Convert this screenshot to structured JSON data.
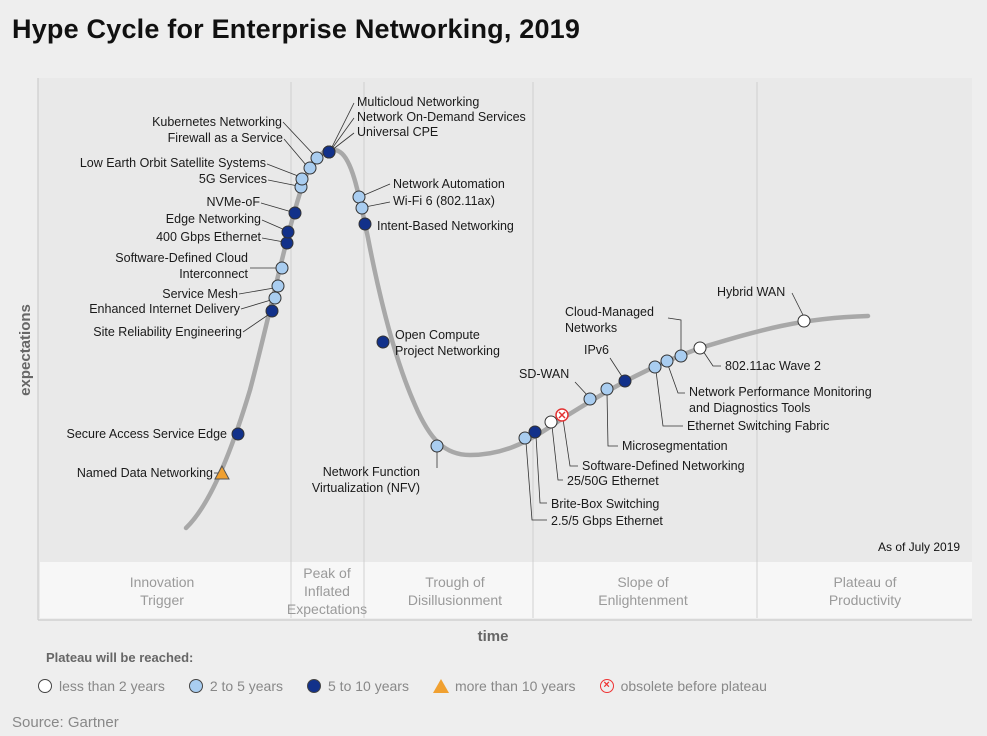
{
  "title": "Hype Cycle for Enterprise Networking, 2019",
  "as_of": "As of July 2019",
  "source": "Source: Gartner",
  "axes": {
    "y": "expectations",
    "x": "time"
  },
  "phases": [
    [
      "Innovation",
      "Trigger"
    ],
    [
      "Peak of",
      "Inflated",
      "Expectations"
    ],
    [
      "Trough of",
      "Disillusionment"
    ],
    [
      "Slope of",
      "Enlightenment"
    ],
    [
      "Plateau of",
      "Productivity"
    ]
  ],
  "plateau_title": "Plateau will be reached:",
  "legend": [
    {
      "label": "less than 2 years",
      "color": "#ffffff"
    },
    {
      "label": "2 to 5 years",
      "color": "#a9cdf0"
    },
    {
      "label": "5 to 10 years",
      "color": "#12318a"
    },
    {
      "label": "more than 10 years",
      "color": "#f0a030"
    },
    {
      "label": "obsolete before plateau",
      "color": "#e33333"
    }
  ],
  "technologies": [
    {
      "lines": [
        "Named Data Networking"
      ],
      "category": "more than 10 years"
    },
    {
      "lines": [
        "Secure Access Service Edge"
      ],
      "category": "5 to 10 years"
    },
    {
      "lines": [
        "Site Reliability Engineering"
      ],
      "category": "5 to 10 years"
    },
    {
      "lines": [
        "Enhanced Internet Delivery"
      ],
      "category": "2 to 5 years"
    },
    {
      "lines": [
        "Service Mesh"
      ],
      "category": "2 to 5 years"
    },
    {
      "lines": [
        "Software-Defined Cloud",
        "Interconnect"
      ],
      "category": "2 to 5 years"
    },
    {
      "lines": [
        "400 Gbps Ethernet"
      ],
      "category": "5 to 10 years"
    },
    {
      "lines": [
        "Edge Networking"
      ],
      "category": "5 to 10 years"
    },
    {
      "lines": [
        "NVMe-oF"
      ],
      "category": "5 to 10 years"
    },
    {
      "lines": [
        "5G Services"
      ],
      "category": "2 to 5 years"
    },
    {
      "lines": [
        "Low Earth Orbit Satellite Systems"
      ],
      "category": "2 to 5 years"
    },
    {
      "lines": [
        "Firewall as a Service"
      ],
      "category": "2 to 5 years"
    },
    {
      "lines": [
        "Kubernetes Networking"
      ],
      "category": "2 to 5 years"
    },
    {
      "lines": [
        "Multicloud Networking"
      ],
      "category": "5 to 10 years"
    },
    {
      "lines": [
        "Network On-Demand Services"
      ],
      "category": "5 to 10 years"
    },
    {
      "lines": [
        "Universal CPE"
      ],
      "category": "5 to 10 years"
    },
    {
      "lines": [
        "Network Automation"
      ],
      "category": "2 to 5 years"
    },
    {
      "lines": [
        "Wi-Fi 6 (802.11ax)"
      ],
      "category": "2 to 5 years"
    },
    {
      "lines": [
        "Intent-Based Networking"
      ],
      "category": "5 to 10 years"
    },
    {
      "lines": [
        "Open Compute",
        "Project Networking"
      ],
      "category": "5 to 10 years"
    },
    {
      "lines": [
        "Network Function",
        "Virtualization (NFV)"
      ],
      "category": "2 to 5 years"
    },
    {
      "lines": [
        "2.5/5 Gbps Ethernet"
      ],
      "category": "2 to 5 years"
    },
    {
      "lines": [
        "Brite-Box Switching"
      ],
      "category": "5 to 10 years"
    },
    {
      "lines": [
        "25/50G Ethernet"
      ],
      "category": "less than 2 years"
    },
    {
      "lines": [
        "Software-Defined Networking"
      ],
      "category": "obsolete before plateau"
    },
    {
      "lines": [
        "SD-WAN"
      ],
      "category": "2 to 5 years"
    },
    {
      "lines": [
        "Microsegmentation"
      ],
      "category": "2 to 5 years"
    },
    {
      "lines": [
        "IPv6"
      ],
      "category": "5 to 10 years"
    },
    {
      "lines": [
        "Ethernet Switching Fabric"
      ],
      "category": "2 to 5 years"
    },
    {
      "lines": [
        "Network Performance Monitoring",
        "and Diagnostics Tools"
      ],
      "category": "2 to 5 years"
    },
    {
      "lines": [
        "Cloud-Managed",
        "Networks"
      ],
      "category": "2 to 5 years"
    },
    {
      "lines": [
        "802.11ac Wave 2"
      ],
      "category": "less than 2 years"
    },
    {
      "lines": [
        "Hybrid WAN"
      ],
      "category": "less than 2 years"
    }
  ]
}
